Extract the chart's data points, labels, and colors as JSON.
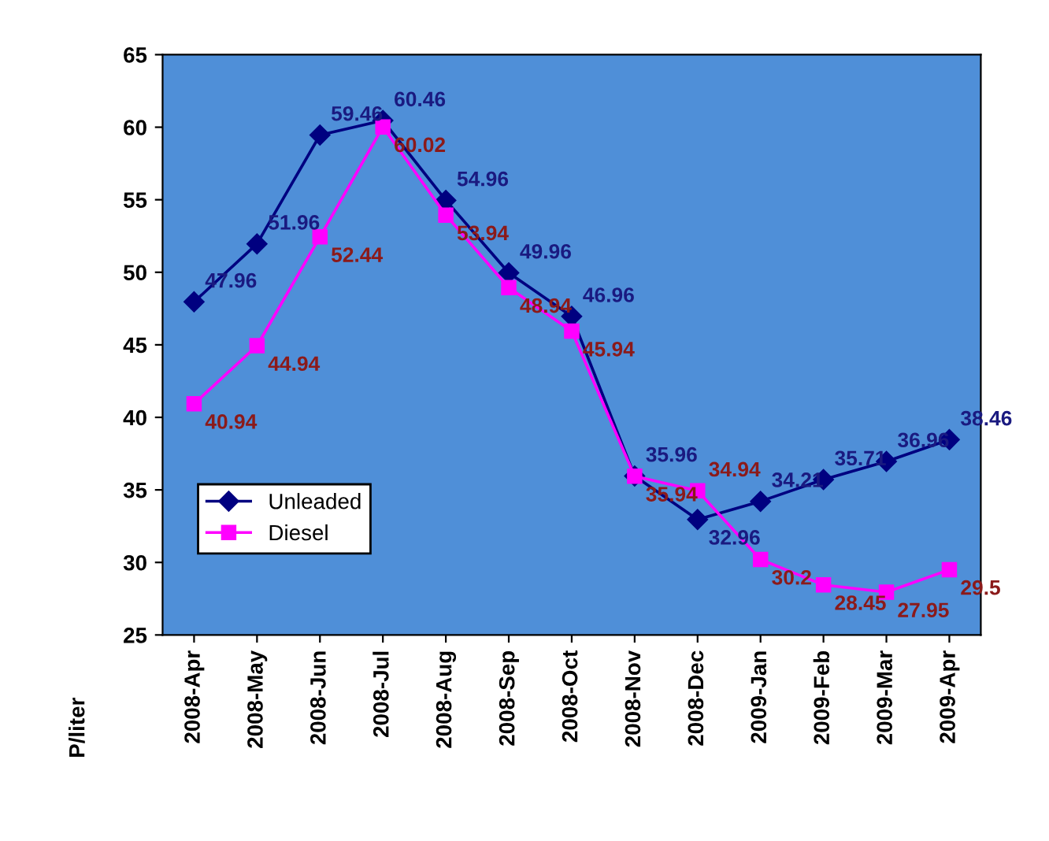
{
  "chart_data": {
    "type": "line",
    "ylabel": "P/liter",
    "categories": [
      "2008-Apr",
      "2008-May",
      "2008-Jun",
      "2008-Jul",
      "2008-Aug",
      "2008-Sep",
      "2008-Oct",
      "2008-Nov",
      "2008-Dec",
      "2009-Jan",
      "2009-Feb",
      "2009-Mar",
      "2009-Apr"
    ],
    "series": [
      {
        "name": "Unleaded",
        "color": "#000080",
        "marker": "diamond",
        "values": [
          47.96,
          51.96,
          59.46,
          60.46,
          54.96,
          49.96,
          46.96,
          35.96,
          32.96,
          34.21,
          35.71,
          36.96,
          38.46
        ]
      },
      {
        "name": "Diesel",
        "color": "#ff00ff",
        "marker": "square",
        "values": [
          40.94,
          44.94,
          52.44,
          60.02,
          53.94,
          48.94,
          45.94,
          35.94,
          34.94,
          30.2,
          28.45,
          27.95,
          29.5
        ]
      }
    ],
    "ylim": [
      25,
      65
    ],
    "yticks": [
      25,
      30,
      35,
      40,
      45,
      50,
      55,
      60,
      65
    ],
    "grid": false,
    "legend": "left",
    "data_labels": true,
    "line_style": "solid"
  }
}
